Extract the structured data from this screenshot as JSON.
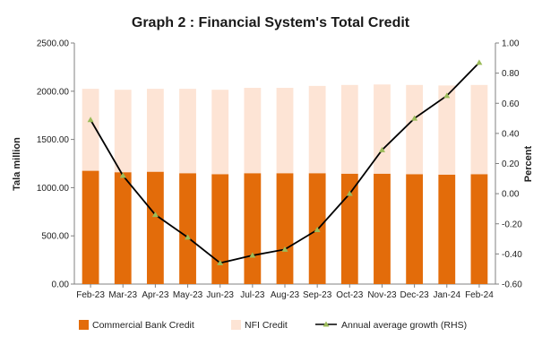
{
  "chart_data": {
    "type": "bar",
    "title": "Graph 2 : Financial System's Total Credit",
    "ylabel": "Tala million",
    "y2label": "Percent",
    "ylim": [
      0,
      2500
    ],
    "y2lim": [
      -0.6,
      1.0
    ],
    "yticks": [
      "0.00",
      "500.00",
      "1000.00",
      "1500.00",
      "2000.00",
      "2500.00"
    ],
    "y2ticks": [
      "-0.60",
      "-0.40",
      "-0.20",
      "0.00",
      "0.20",
      "0.40",
      "0.60",
      "0.80",
      "1.00"
    ],
    "categories": [
      "Feb-23",
      "Mar-23",
      "Apr-23",
      "May-23",
      "Jun-23",
      "Jul-23",
      "Aug-23",
      "Sep-23",
      "Oct-23",
      "Nov-23",
      "Dec-23",
      "Jan-24",
      "Feb-24"
    ],
    "stacked": true,
    "series": [
      {
        "name": "Commercial Bank Credit",
        "kind": "bar",
        "color": "#E36C0A",
        "values": [
          1175,
          1160,
          1165,
          1150,
          1140,
          1150,
          1150,
          1150,
          1145,
          1145,
          1140,
          1135,
          1140
        ]
      },
      {
        "name": "NFI Credit",
        "kind": "bar",
        "color": "#FDE4D5",
        "values": [
          850,
          855,
          860,
          875,
          875,
          885,
          885,
          905,
          920,
          925,
          925,
          925,
          925
        ]
      },
      {
        "name": "Annual average growth (RHS)",
        "kind": "line",
        "axis": "right",
        "line_color": "#000000",
        "marker_color": "#9BBB59",
        "values": [
          0.49,
          0.12,
          -0.14,
          -0.29,
          -0.46,
          -0.41,
          -0.37,
          -0.24,
          0.0,
          0.29,
          0.5,
          0.65,
          0.87
        ]
      }
    ],
    "legend_position": "bottom",
    "grid": false
  }
}
